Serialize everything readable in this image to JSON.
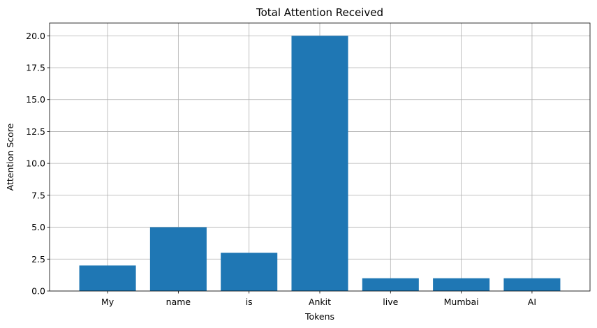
{
  "chart_data": {
    "type": "bar",
    "title": "Total Attention Received",
    "xlabel": "Tokens",
    "ylabel": "Attention Score",
    "categories": [
      "My",
      "name",
      "is",
      "Ankit",
      "live",
      "Mumbai",
      "AI"
    ],
    "values": [
      2,
      5,
      3,
      20,
      1,
      1,
      1
    ],
    "ylim": [
      0,
      21
    ],
    "yticks": [
      "0.0",
      "2.5",
      "5.0",
      "7.5",
      "10.0",
      "12.5",
      "15.0",
      "17.5",
      "20.0"
    ],
    "grid": true,
    "bar_color": "#1f77b4"
  }
}
